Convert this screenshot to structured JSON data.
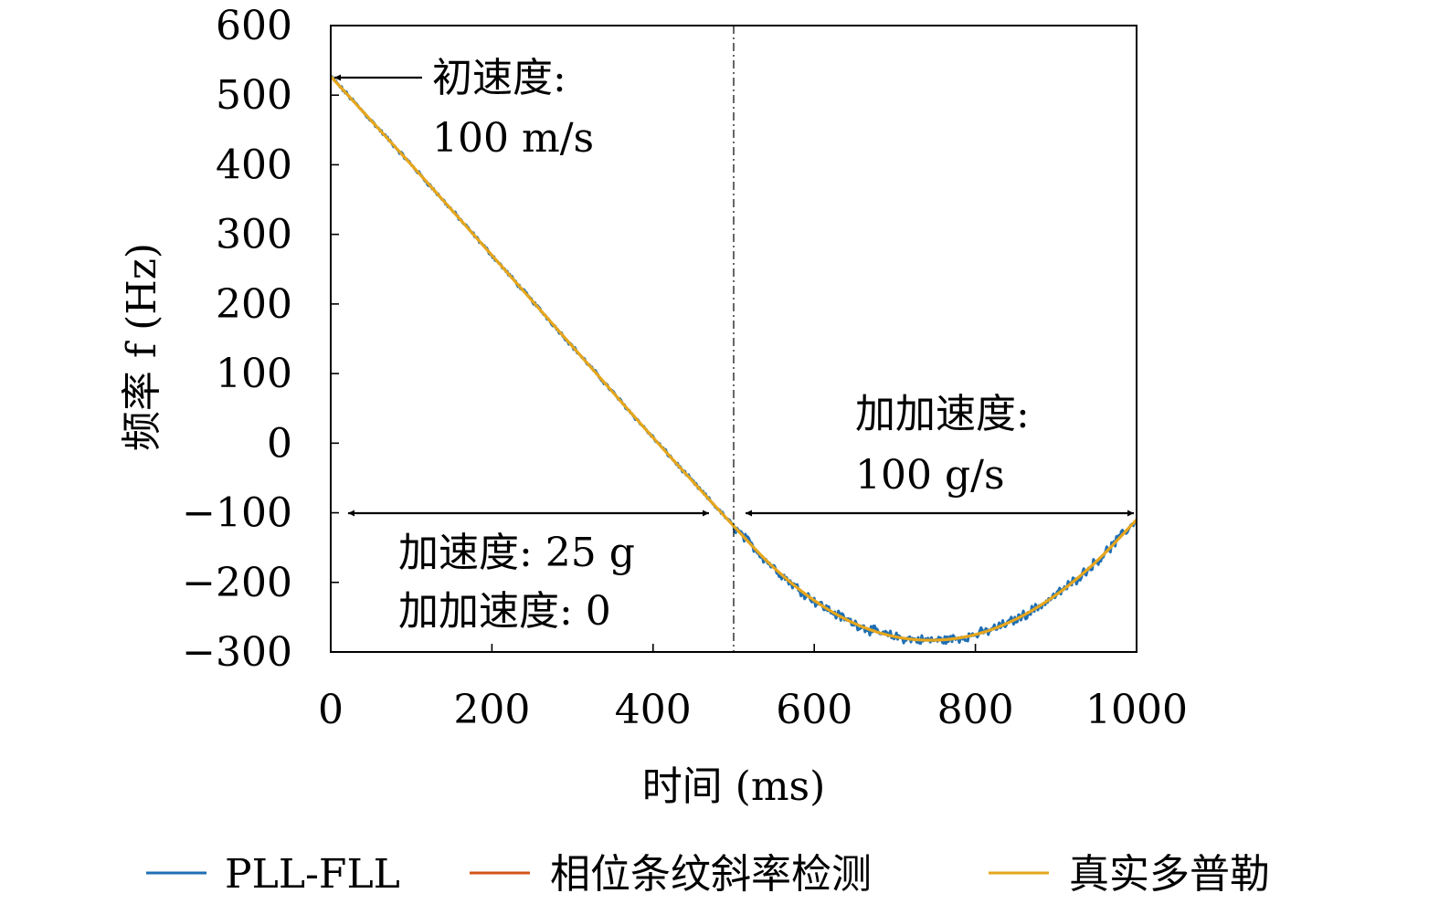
{
  "chart_data": {
    "type": "line",
    "xlabel": "时间 (ms)",
    "ylabel": "频率 f (Hz)",
    "xlim": [
      0,
      1000
    ],
    "ylim": [
      -300,
      600
    ],
    "xticks": [
      0,
      200,
      400,
      600,
      800,
      1000
    ],
    "yticks": [
      -300,
      -200,
      -100,
      0,
      100,
      200,
      300,
      400,
      500,
      600
    ],
    "xtick_labels": [
      "0",
      "200",
      "400",
      "600",
      "800",
      "1000"
    ],
    "ytick_labels": [
      "−300",
      "−200",
      "−100",
      "0",
      "100",
      "200",
      "300",
      "400",
      "500",
      "600"
    ],
    "grid": false,
    "legend_position": "bottom",
    "series": [
      {
        "name": "PLL-FLL",
        "color": "#1f6fb4",
        "noisy": true,
        "x": [
          0,
          100,
          200,
          300,
          400,
          500,
          550,
          600,
          650,
          700,
          750,
          800,
          850,
          900,
          950,
          1000
        ],
        "y": [
          527,
          400,
          270,
          139,
          8,
          -119,
          -179,
          -226,
          -259,
          -278,
          -283,
          -275,
          -253,
          -218,
          -170,
          -110
        ]
      },
      {
        "name": "相位条纹斜率检测",
        "color": "#d35418",
        "noisy": false,
        "x": [
          0,
          100,
          200,
          300,
          400,
          500,
          550,
          600,
          650,
          700,
          750,
          800,
          850,
          900,
          950,
          1000
        ],
        "y": [
          527,
          400,
          270,
          139,
          8,
          -119,
          -179,
          -226,
          -259,
          -278,
          -283,
          -275,
          -253,
          -218,
          -170,
          -110
        ]
      },
      {
        "name": "真实多普勒",
        "color": "#e6a61c",
        "noisy": false,
        "x": [
          0,
          100,
          200,
          300,
          400,
          500,
          550,
          600,
          650,
          700,
          750,
          800,
          850,
          900,
          950,
          1000
        ],
        "y": [
          527,
          400,
          270,
          139,
          8,
          -119,
          -179,
          -226,
          -259,
          -278,
          -283,
          -275,
          -253,
          -218,
          -170,
          -110
        ]
      }
    ],
    "annotations": {
      "init_speed_line1": "初速度:",
      "init_speed_line2": "100 m/s",
      "jerk_right_line1": "加加速度:",
      "jerk_right_line2": "100 g/s",
      "accel_left_line1": "加速度: 25 g",
      "accel_left_line2": "加加速度: 0"
    },
    "divider_x": 500
  }
}
